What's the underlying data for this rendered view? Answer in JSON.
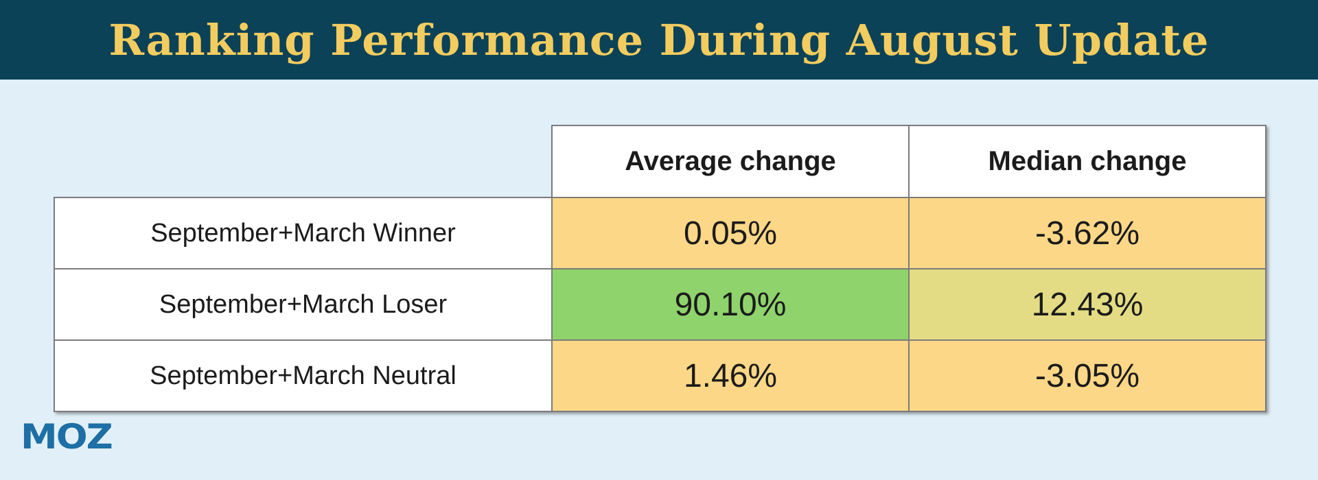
{
  "header": {
    "title": "Ranking Performance During August Update"
  },
  "table": {
    "columns": [
      "Average change",
      "Median change"
    ],
    "rows": [
      {
        "label": "September+March Winner",
        "average": "0.05%",
        "median": "-3.62%",
        "average_bg": "#FCD787",
        "median_bg": "#FCD787"
      },
      {
        "label": "September+March Loser",
        "average": "90.10%",
        "median": "12.43%",
        "average_bg": "#8FD36C",
        "median_bg": "#E3DC84"
      },
      {
        "label": "September+March Neutral",
        "average": "1.46%",
        "median": "-3.05%",
        "average_bg": "#FCD787",
        "median_bg": "#FCD787"
      }
    ]
  },
  "footer": {
    "logo_text": "MOZ"
  },
  "colors": {
    "header_bar": "#0B4257",
    "title_text": "#F3CC5F",
    "page_background": "#E1F0F8",
    "cell_yellow": "#FCD787",
    "cell_green": "#8FD36C",
    "cell_yellow_green": "#E3DC84",
    "cell_white": "#FFFFFF",
    "table_border": "#7B7B7B",
    "moz_logo_blue": "#1D6FA5"
  },
  "chart_data": {
    "type": "table",
    "title": "Ranking Performance During August Update",
    "columns": [
      "Average change",
      "Median change"
    ],
    "row_labels": [
      "September+March Winner",
      "September+March Loser",
      "September+March Neutral"
    ],
    "series": [
      {
        "name": "Average change",
        "values_pct": [
          0.05,
          90.1,
          1.46
        ]
      },
      {
        "name": "Median change",
        "values_pct": [
          -3.62,
          12.43,
          -3.05
        ]
      }
    ]
  }
}
